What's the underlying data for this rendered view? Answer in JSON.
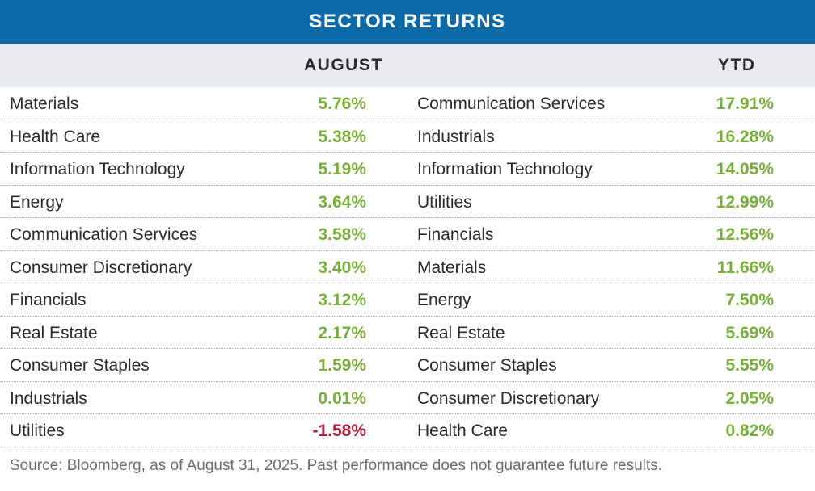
{
  "title": "SECTOR RETURNS",
  "colors": {
    "title_bg": "#0d6aa8",
    "header_bg": "#e8ebed",
    "positive": "#7aae3e",
    "negative": "#b01e3a"
  },
  "chart_data": {
    "type": "table",
    "title": "SECTOR RETURNS",
    "columns": [
      {
        "header": "AUGUST",
        "rows": [
          {
            "sector": "Materials",
            "value": "5.76%",
            "number": 5.76
          },
          {
            "sector": "Health Care",
            "value": "5.38%",
            "number": 5.38
          },
          {
            "sector": "Information Technology",
            "value": "5.19%",
            "number": 5.19
          },
          {
            "sector": "Energy",
            "value": "3.64%",
            "number": 3.64
          },
          {
            "sector": "Communication Services",
            "value": "3.58%",
            "number": 3.58
          },
          {
            "sector": "Consumer Discretionary",
            "value": "3.40%",
            "number": 3.4
          },
          {
            "sector": "Financials",
            "value": "3.12%",
            "number": 3.12
          },
          {
            "sector": "Real Estate",
            "value": "2.17%",
            "number": 2.17
          },
          {
            "sector": "Consumer Staples",
            "value": "1.59%",
            "number": 1.59
          },
          {
            "sector": "Industrials",
            "value": "0.01%",
            "number": 0.01
          },
          {
            "sector": "Utilities",
            "value": "-1.58%",
            "number": -1.58
          }
        ]
      },
      {
        "header": "YTD",
        "rows": [
          {
            "sector": "Communication Services",
            "value": "17.91%",
            "number": 17.91
          },
          {
            "sector": "Industrials",
            "value": "16.28%",
            "number": 16.28
          },
          {
            "sector": "Information Technology",
            "value": "14.05%",
            "number": 14.05
          },
          {
            "sector": "Utilities",
            "value": "12.99%",
            "number": 12.99
          },
          {
            "sector": "Financials",
            "value": "12.56%",
            "number": 12.56
          },
          {
            "sector": "Materials",
            "value": "11.66%",
            "number": 11.66
          },
          {
            "sector": "Energy",
            "value": "7.50%",
            "number": 7.5
          },
          {
            "sector": "Real Estate",
            "value": "5.69%",
            "number": 5.69
          },
          {
            "sector": "Consumer Staples",
            "value": "5.55%",
            "number": 5.55
          },
          {
            "sector": "Consumer Discretionary",
            "value": "2.05%",
            "number": 2.05
          },
          {
            "sector": "Health Care",
            "value": "0.82%",
            "number": 0.82
          }
        ]
      }
    ]
  },
  "footnote": "Source: Bloomberg, as of August 31, 2025. Past performance does not guarantee future results."
}
